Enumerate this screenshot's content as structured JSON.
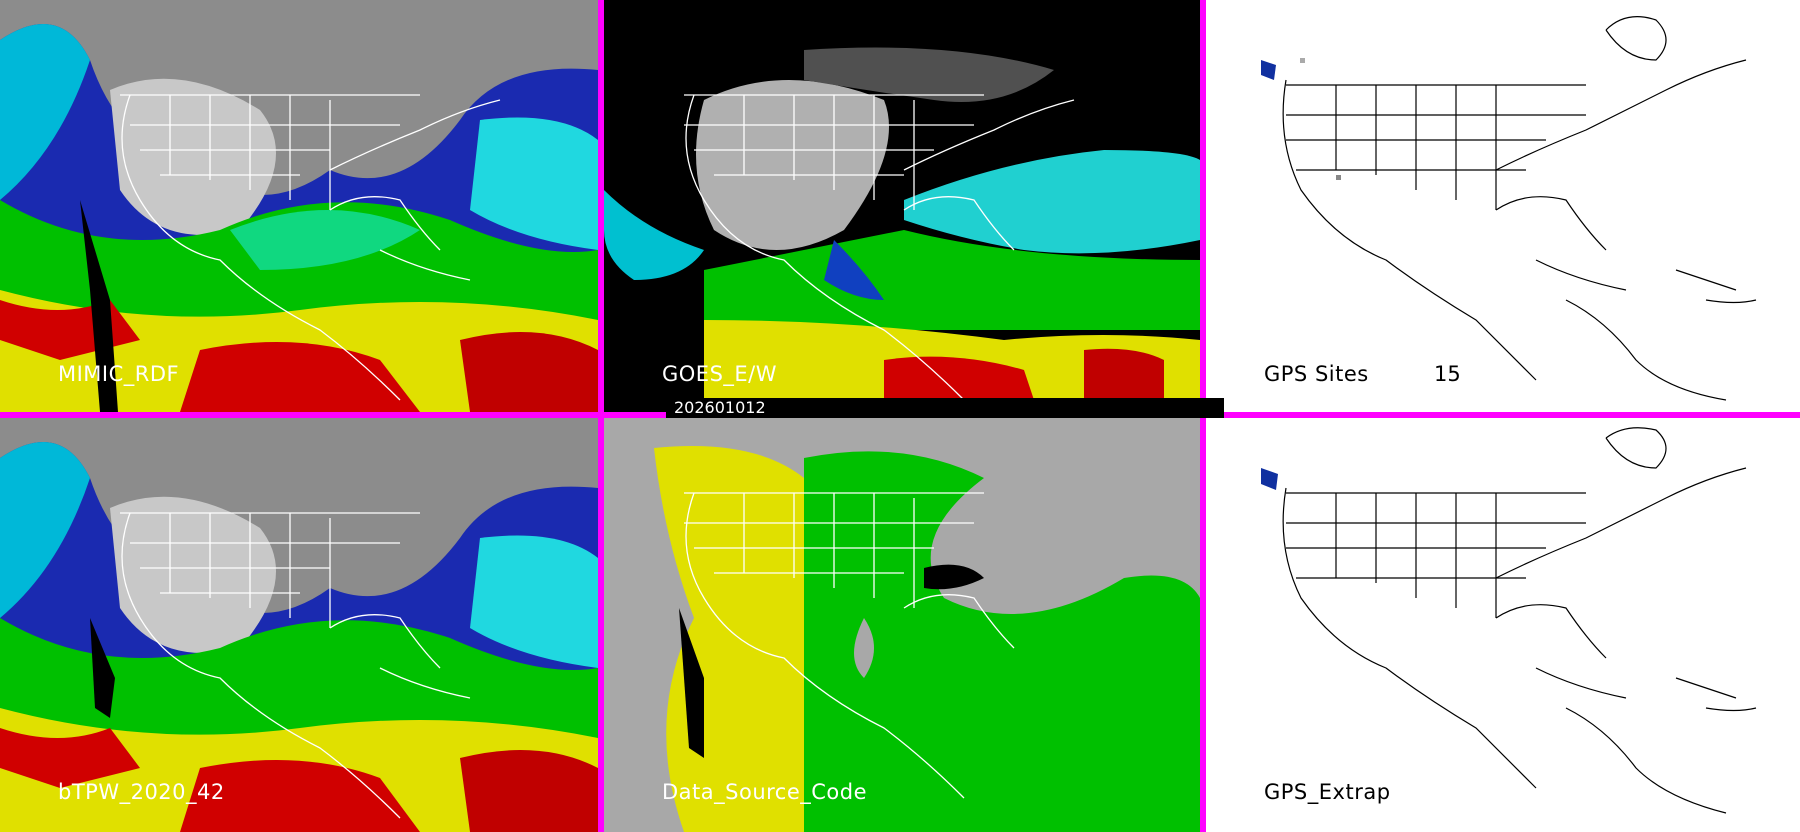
{
  "panels": [
    {
      "label": "MIMIC_RDF",
      "scheme": "tpw"
    },
    {
      "label": "GOES_E/W",
      "scheme": "goes"
    },
    {
      "label": "GPS Sites",
      "count": "15",
      "scheme": "map"
    },
    {
      "label": "bTPW_2020_42",
      "scheme": "tpw"
    },
    {
      "label": "Data_Source_Code",
      "scheme": "source"
    },
    {
      "label": "GPS_Extrap",
      "scheme": "map"
    }
  ],
  "timestamp": "202601012",
  "colors": {
    "frame": "#ff00ff",
    "tpw_dry": "#1020a0",
    "tpw_mid": "#00d0d0",
    "tpw_moist": "#00c000",
    "tpw_wet": "#e0e000",
    "tpw_vwet": "#d00000",
    "source_gray": "#a8a8a8",
    "source_yellow": "#e0e000",
    "source_green": "#00c000"
  }
}
